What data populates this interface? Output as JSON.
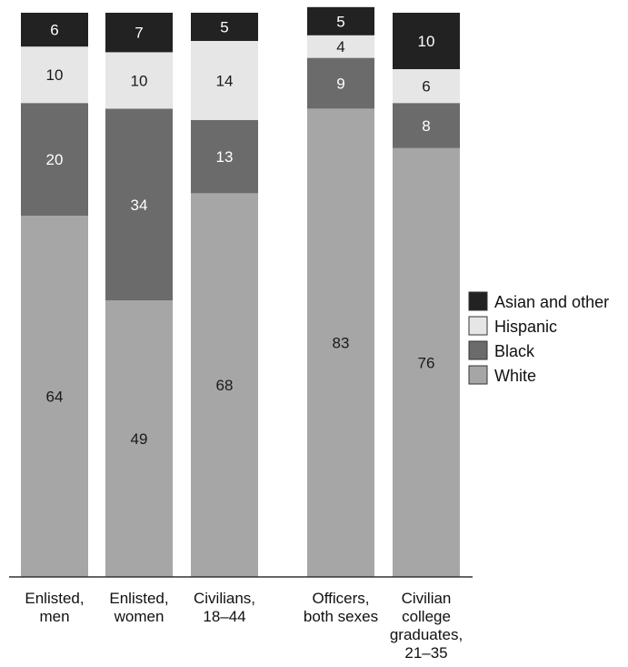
{
  "chart_data": {
    "type": "bar",
    "stacked": true,
    "orientation": "vertical",
    "categories": [
      [
        "Enlisted,",
        "men"
      ],
      [
        "Enlisted,",
        "women"
      ],
      [
        "Civilians,",
        "18–44"
      ],
      [
        "Officers,",
        "both sexes"
      ],
      [
        "Civilian",
        "college",
        "graduates,",
        "21–35"
      ]
    ],
    "series": [
      {
        "name": "White",
        "color": "#a6a6a6",
        "label_color": "#1a1a1a",
        "values": [
          64,
          49,
          68,
          83,
          76
        ]
      },
      {
        "name": "Black",
        "color": "#6b6b6b",
        "label_color": "#ffffff",
        "values": [
          20,
          34,
          13,
          9,
          8
        ]
      },
      {
        "name": "Hispanic",
        "color": "#e6e6e6",
        "label_color": "#1a1a1a",
        "values": [
          10,
          10,
          14,
          4,
          6
        ]
      },
      {
        "name": "Asian and other",
        "color": "#222222",
        "label_color": "#ffffff",
        "values": [
          6,
          7,
          5,
          5,
          10
        ]
      }
    ],
    "legend_order": [
      "Asian and other",
      "Hispanic",
      "Black",
      "White"
    ],
    "legend_position": "right",
    "ylim": [
      0,
      100
    ],
    "grid": false,
    "title": "",
    "xlabel": "",
    "ylabel": ""
  }
}
